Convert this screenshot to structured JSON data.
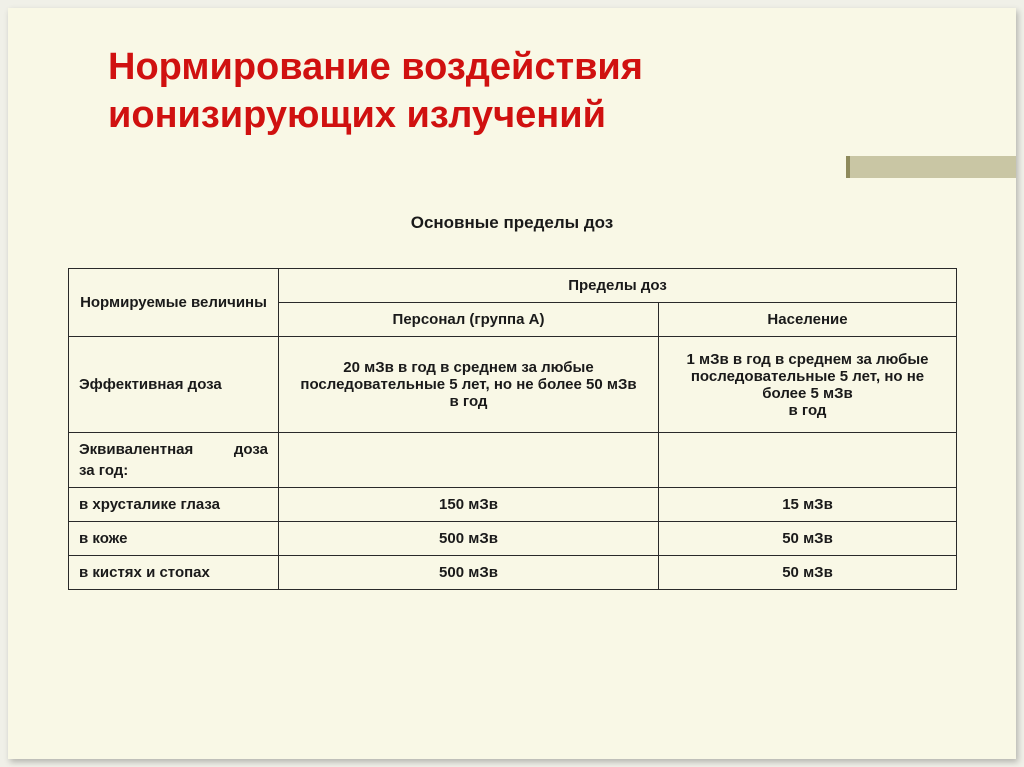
{
  "slide": {
    "title_line1": "Нормирование воздействия",
    "title_line2": "ионизирующих излучений",
    "subtitle": "Основные пределы доз"
  },
  "table": {
    "header": {
      "col1": "Нормируемые величины",
      "col2_span": "Пределы доз",
      "col2a": "Персонал (группа А)",
      "col2b": "Население"
    },
    "rows": [
      {
        "label": "Эффективная доза",
        "personnel": "20 мЗв в год в среднем за любые последовательные 5 лет, но не более 50 мЗв\nв год",
        "population": "1 мЗв в год в среднем за любые последовательные 5 лет, но не более 5 мЗв\nв год"
      },
      {
        "label": "Эквивалентная доза за год:",
        "personnel": "",
        "population": ""
      },
      {
        "label": "в хрусталике глаза",
        "personnel": "150 мЗв",
        "population": "15 мЗв"
      },
      {
        "label": "в коже",
        "personnel": "500 мЗв",
        "population": "50 мЗв"
      },
      {
        "label": "в кистях и стопах",
        "personnel": "500 мЗв",
        "population": "50 мЗв"
      }
    ]
  },
  "style": {
    "title_color": "#d01110",
    "background": "#f9f8e6",
    "accent_color": "#c9c6a4",
    "border_color": "#2a2a2a",
    "title_fontsize": 38,
    "body_fontsize": 15
  }
}
